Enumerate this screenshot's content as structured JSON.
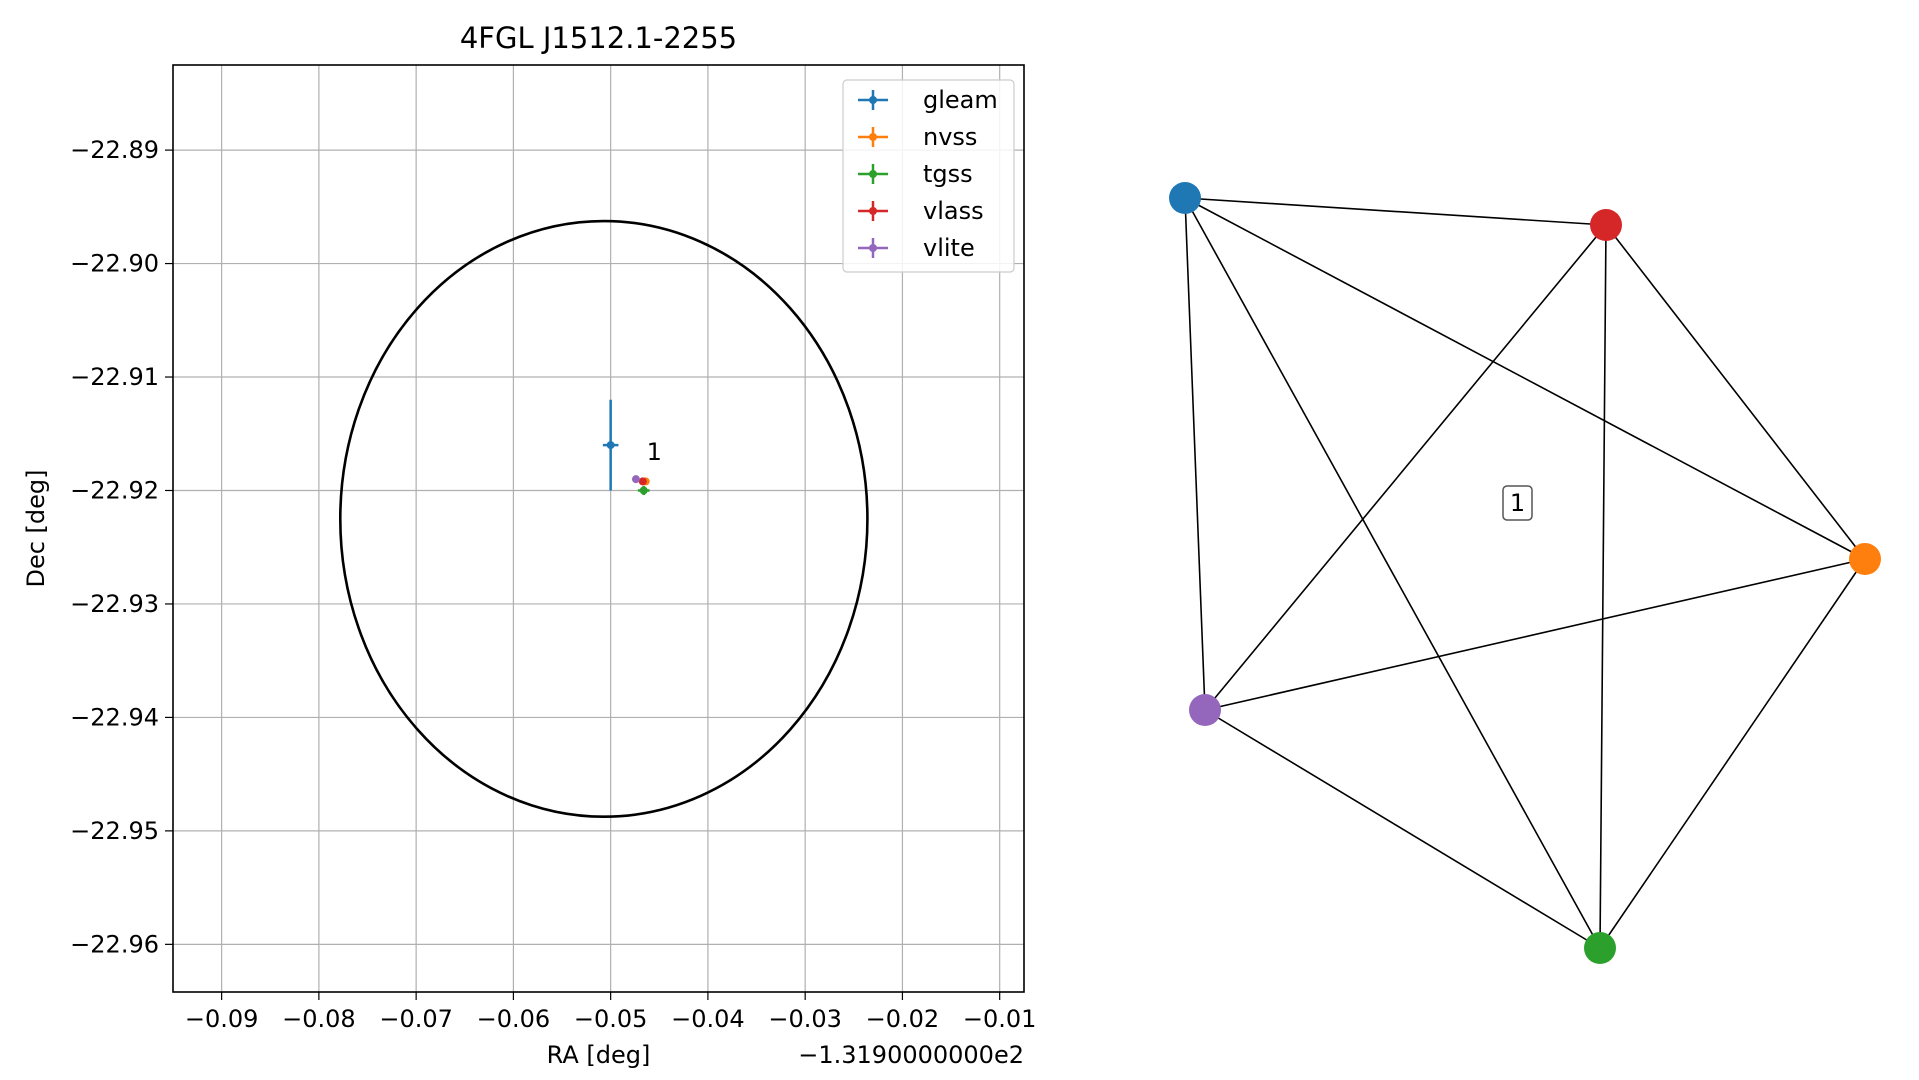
{
  "chart_data": [
    {
      "type": "scatter",
      "title": "4FGL J1512.1-2255",
      "xlabel": "RA [deg]",
      "ylabel": "Dec [deg]",
      "x_offset_label": "−1.3190000000e2",
      "x_tick_labels": [
        "−0.09",
        "−0.08",
        "−0.07",
        "−0.06",
        "−0.05",
        "−0.04",
        "−0.03",
        "−0.02",
        "−0.01"
      ],
      "y_tick_labels": [
        "−22.89",
        "−22.90",
        "−22.91",
        "−22.92",
        "−22.93",
        "−22.94",
        "−22.95",
        "−22.96"
      ],
      "xlim": [
        -0.095,
        -0.0075
      ],
      "ylim": [
        -22.9642,
        -22.8825
      ],
      "x_ticks": [
        -0.09,
        -0.08,
        -0.07,
        -0.06,
        -0.05,
        -0.04,
        -0.03,
        -0.02,
        -0.01
      ],
      "y_ticks": [
        -22.89,
        -22.9,
        -22.91,
        -22.92,
        -22.93,
        -22.94,
        -22.95,
        -22.96
      ],
      "grid": true,
      "legend_position": "top-right",
      "series": [
        {
          "name": "gleam",
          "color": "#1f77b4",
          "x": -0.05,
          "y": -22.916,
          "xerr": 0.0008,
          "yerr": 0.004
        },
        {
          "name": "nvss",
          "color": "#ff7f0e",
          "x": -0.0464,
          "y": -22.9192,
          "xerr": 0.0004,
          "yerr": 0.0003
        },
        {
          "name": "tgss",
          "color": "#2ca02c",
          "x": -0.0466,
          "y": -22.92,
          "xerr": 0.0006,
          "yerr": 0.0004
        },
        {
          "name": "vlass",
          "color": "#d62728",
          "x": -0.0467,
          "y": -22.9192,
          "xerr": 0.0001,
          "yerr": 0.0001
        },
        {
          "name": "vlite",
          "color": "#9467bd",
          "x": -0.0474,
          "y": -22.919,
          "xerr": 0.0003,
          "yerr": 0.0002
        }
      ],
      "ellipse": {
        "color": "#000000",
        "center": [
          -0.0507,
          -22.9225
        ],
        "width": 0.0542,
        "height": 0.0525
      },
      "annotations": [
        {
          "text": "1",
          "x": -0.0463,
          "y": -22.9175
        }
      ]
    },
    {
      "type": "network",
      "center_label": "1",
      "nodes": [
        {
          "id": "gleam",
          "color": "#1f77b4"
        },
        {
          "id": "nvss",
          "color": "#ff7f0e"
        },
        {
          "id": "tgss",
          "color": "#2ca02c"
        },
        {
          "id": "vlass",
          "color": "#d62728"
        },
        {
          "id": "vlite",
          "color": "#9467bd"
        }
      ],
      "edges": [
        [
          "gleam",
          "vlass"
        ],
        [
          "gleam",
          "nvss"
        ],
        [
          "gleam",
          "vlite"
        ],
        [
          "gleam",
          "tgss"
        ],
        [
          "vlass",
          "nvss"
        ],
        [
          "vlass",
          "vlite"
        ],
        [
          "vlass",
          "tgss"
        ],
        [
          "nvss",
          "vlite"
        ],
        [
          "nvss",
          "tgss"
        ],
        [
          "vlite",
          "tgss"
        ]
      ]
    }
  ]
}
